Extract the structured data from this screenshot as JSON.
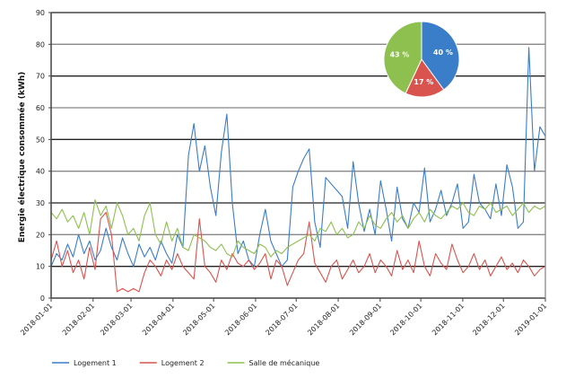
{
  "chart_data": {
    "type": "line",
    "title": "",
    "xlabel": "",
    "ylabel": "Energie électrique consommée (kWh)",
    "ylim": [
      0,
      90
    ],
    "yticks": [
      "0",
      "10",
      "20",
      "30",
      "40",
      "50",
      "60",
      "70",
      "80",
      "90"
    ],
    "xticks": [
      "2018-01-01",
      "2018-02-01",
      "2018-03-01",
      "2018-04-01",
      "2018-05-01",
      "2018-06-01",
      "2018-07-01",
      "2018-08-01",
      "2018-09-01",
      "2018-10-01",
      "2018-11-01",
      "2018-12-01",
      "2019-01-01"
    ],
    "grid": true,
    "legend_position": "bottom-left",
    "x_start": "2018-01-01",
    "x_step_days": 5,
    "series": [
      {
        "name": "Logement 1",
        "color": "#3a7dc9",
        "values": [
          10,
          14,
          12,
          17,
          13,
          20,
          14,
          18,
          12,
          15,
          22,
          16,
          12,
          19,
          14,
          10,
          17,
          13,
          16,
          12,
          18,
          14,
          11,
          20,
          16,
          45,
          55,
          40,
          48,
          35,
          26,
          46,
          58,
          30,
          14,
          18,
          12,
          10,
          20,
          28,
          18,
          14,
          10,
          12,
          35,
          40,
          44,
          47,
          24,
          16,
          38,
          36,
          34,
          32,
          22,
          43,
          30,
          21,
          28,
          20,
          37,
          28,
          18,
          35,
          25,
          22,
          30,
          27,
          41,
          24,
          28,
          34,
          26,
          30,
          36,
          22,
          24,
          39,
          30,
          28,
          25,
          36,
          26,
          42,
          35,
          22,
          24,
          79,
          40,
          54,
          51
        ]
      },
      {
        "name": "Logement 2",
        "color": "#d9534f",
        "values": [
          12,
          18,
          10,
          15,
          8,
          12,
          6,
          16,
          9,
          25,
          27,
          20,
          2,
          3,
          2,
          3,
          2,
          8,
          12,
          10,
          7,
          12,
          9,
          14,
          10,
          8,
          6,
          25,
          10,
          8,
          5,
          12,
          9,
          14,
          11,
          10,
          12,
          9,
          11,
          14,
          6,
          12,
          10,
          4,
          8,
          12,
          14,
          24,
          11,
          8,
          5,
          10,
          12,
          6,
          9,
          12,
          8,
          10,
          14,
          8,
          12,
          10,
          7,
          15,
          9,
          12,
          8,
          18,
          10,
          7,
          14,
          11,
          9,
          17,
          12,
          8,
          10,
          14,
          9,
          12,
          7,
          10,
          13,
          9,
          11,
          8,
          12,
          10,
          7,
          9,
          10
        ]
      },
      {
        "name": "Salle de mécanique",
        "color": "#8dc04f",
        "values": [
          27,
          25,
          28,
          24,
          26,
          22,
          27,
          20,
          31,
          26,
          29,
          22,
          30,
          26,
          20,
          22,
          18,
          26,
          30,
          20,
          17,
          24,
          18,
          22,
          16,
          15,
          20,
          19,
          18,
          16,
          15,
          17,
          14,
          13,
          18,
          16,
          15,
          14,
          17,
          16,
          13,
          15,
          14,
          16,
          17,
          18,
          19,
          20,
          18,
          22,
          21,
          24,
          20,
          22,
          19,
          20,
          24,
          22,
          26,
          23,
          22,
          25,
          27,
          24,
          26,
          22,
          25,
          27,
          24,
          28,
          26,
          25,
          27,
          29,
          28,
          30,
          27,
          26,
          29,
          28,
          30,
          27,
          28,
          29,
          26,
          28,
          30,
          27,
          29,
          28,
          29
        ]
      }
    ],
    "inset_pie": {
      "type": "pie",
      "slices": [
        {
          "label": "Logement 1",
          "value": 40,
          "text": "40 %",
          "color": "#3a7dc9"
        },
        {
          "label": "Logement 2",
          "value": 17,
          "text": "17 %",
          "color": "#d9534f"
        },
        {
          "label": "Salle de mécanique",
          "value": 43,
          "text": "43 %",
          "color": "#8dc04f"
        }
      ]
    }
  }
}
